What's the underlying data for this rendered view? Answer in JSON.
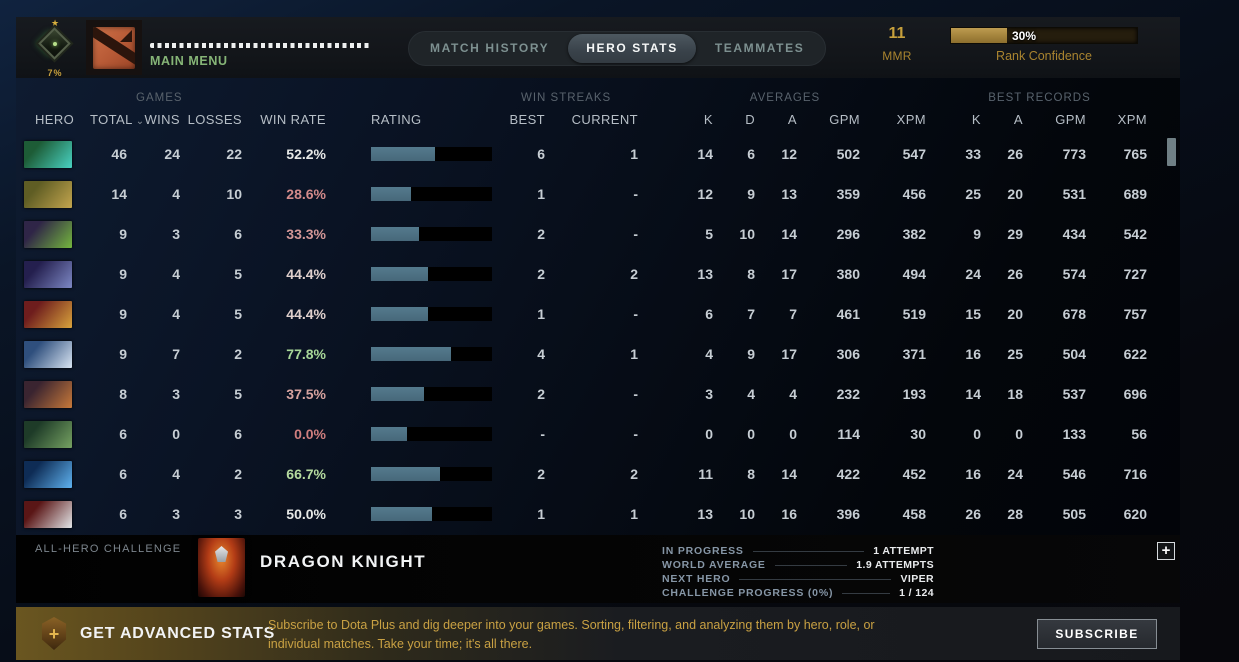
{
  "top_bar": {
    "rank_badge": {
      "percent": "7%"
    },
    "main_menu": {
      "label": "MAIN MENU",
      "masked_name_dots": 30
    },
    "tabs": [
      {
        "label": "MATCH HISTORY",
        "active": false
      },
      {
        "label": "HERO STATS",
        "active": true
      },
      {
        "label": "TEAMMATES",
        "active": false
      }
    ],
    "mmr": {
      "value": "11",
      "label": "MMR"
    },
    "rank_confidence": {
      "label": "Rank Confidence",
      "percent_text": "30%",
      "fill_percent": 30
    }
  },
  "table": {
    "group_headers": {
      "games": "GAMES",
      "win_streaks": "WIN STREAKS",
      "averages": "AVERAGES",
      "best_records": "BEST RECORDS"
    },
    "columns": {
      "hero": "HERO",
      "total": "TOTAL",
      "wins": "WINS",
      "losses": "LOSSES",
      "win_rate": "WIN RATE",
      "rating": "RATING",
      "best": "BEST",
      "current": "CURRENT",
      "k": "K",
      "d": "D",
      "a": "A",
      "gpm": "GPM",
      "xpm": "XPM",
      "rk": "K",
      "ra": "A",
      "rgpm": "GPM",
      "rxpm": "XPM"
    },
    "sort_chevron": "⌄",
    "bar_color": "#4e7487",
    "rows": [
      {
        "hero": "weaver",
        "icon": [
          "#1d5c36",
          "#49d2c2"
        ],
        "total": "46",
        "wins": "24",
        "losses": "22",
        "win_rate": "52.2%",
        "win_rate_color": "#e6e8e6",
        "rating_fill": 53,
        "streak_best": "6",
        "streak_current": "1",
        "avg_k": "14",
        "avg_d": "6",
        "avg_a": "12",
        "avg_gpm": "502",
        "avg_xpm": "547",
        "best_k": "33",
        "best_a": "26",
        "best_gpm": "773",
        "best_xpm": "765"
      },
      {
        "hero": "pudge",
        "icon": [
          "#5f5d24",
          "#c3a54e"
        ],
        "total": "14",
        "wins": "4",
        "losses": "10",
        "win_rate": "28.6%",
        "win_rate_color": "#d38b8b",
        "rating_fill": 33,
        "streak_best": "1",
        "streak_current": "-",
        "avg_k": "12",
        "avg_d": "9",
        "avg_a": "13",
        "avg_gpm": "359",
        "avg_xpm": "456",
        "best_k": "25",
        "best_a": "20",
        "best_gpm": "531",
        "best_xpm": "689"
      },
      {
        "hero": "rubick",
        "icon": [
          "#2f2547",
          "#74b63e"
        ],
        "total": "9",
        "wins": "3",
        "losses": "6",
        "win_rate": "33.3%",
        "win_rate_color": "#d39797",
        "rating_fill": 40,
        "streak_best": "2",
        "streak_current": "-",
        "avg_k": "5",
        "avg_d": "10",
        "avg_a": "14",
        "avg_gpm": "296",
        "avg_xpm": "382",
        "best_k": "9",
        "best_a": "29",
        "best_gpm": "434",
        "best_xpm": "542"
      },
      {
        "hero": "riki",
        "icon": [
          "#241f4e",
          "#7d88c4"
        ],
        "total": "9",
        "wins": "4",
        "losses": "5",
        "win_rate": "44.4%",
        "win_rate_color": "#e0d0cd",
        "rating_fill": 47,
        "streak_best": "2",
        "streak_current": "2",
        "avg_k": "13",
        "avg_d": "8",
        "avg_a": "17",
        "avg_gpm": "380",
        "avg_xpm": "494",
        "best_k": "24",
        "best_a": "26",
        "best_gpm": "574",
        "best_xpm": "727"
      },
      {
        "hero": "legion-commander",
        "icon": [
          "#6e1d1d",
          "#d9a33c"
        ],
        "total": "9",
        "wins": "4",
        "losses": "5",
        "win_rate": "44.4%",
        "win_rate_color": "#e0d0cd",
        "rating_fill": 47,
        "streak_best": "1",
        "streak_current": "-",
        "avg_k": "6",
        "avg_d": "7",
        "avg_a": "7",
        "avg_gpm": "461",
        "avg_xpm": "519",
        "best_k": "15",
        "best_a": "20",
        "best_gpm": "678",
        "best_xpm": "757"
      },
      {
        "hero": "crystal-maiden",
        "icon": [
          "#2f4f7d",
          "#d8e4f2"
        ],
        "total": "9",
        "wins": "7",
        "losses": "2",
        "win_rate": "77.8%",
        "win_rate_color": "#a8d798",
        "rating_fill": 66,
        "streak_best": "4",
        "streak_current": "1",
        "avg_k": "4",
        "avg_d": "9",
        "avg_a": "17",
        "avg_gpm": "306",
        "avg_xpm": "371",
        "best_k": "16",
        "best_a": "25",
        "best_gpm": "504",
        "best_xpm": "622"
      },
      {
        "hero": "timbersaw",
        "icon": [
          "#3a2430",
          "#c7793a"
        ],
        "total": "8",
        "wins": "3",
        "losses": "5",
        "win_rate": "37.5%",
        "win_rate_color": "#d7a39f",
        "rating_fill": 44,
        "streak_best": "2",
        "streak_current": "-",
        "avg_k": "3",
        "avg_d": "4",
        "avg_a": "4",
        "avg_gpm": "232",
        "avg_xpm": "193",
        "best_k": "14",
        "best_a": "18",
        "best_gpm": "537",
        "best_xpm": "696"
      },
      {
        "hero": "tidehunter",
        "icon": [
          "#1e3b28",
          "#76a262"
        ],
        "total": "6",
        "wins": "0",
        "losses": "6",
        "win_rate": "0.0%",
        "win_rate_color": "#cf7e7e",
        "rating_fill": 30,
        "streak_best": "-",
        "streak_current": "-",
        "avg_k": "0",
        "avg_d": "0",
        "avg_a": "0",
        "avg_gpm": "114",
        "avg_xpm": "30",
        "best_k": "0",
        "best_a": "0",
        "best_gpm": "133",
        "best_xpm": "56"
      },
      {
        "hero": "razor",
        "icon": [
          "#0e2c55",
          "#5fb2ef"
        ],
        "total": "6",
        "wins": "4",
        "losses": "2",
        "win_rate": "66.7%",
        "win_rate_color": "#b5db9f",
        "rating_fill": 57,
        "streak_best": "2",
        "streak_current": "2",
        "avg_k": "11",
        "avg_d": "8",
        "avg_a": "14",
        "avg_gpm": "422",
        "avg_xpm": "452",
        "best_k": "16",
        "best_a": "24",
        "best_gpm": "546",
        "best_xpm": "716"
      },
      {
        "hero": "tusk",
        "icon": [
          "#5a1616",
          "#e3e6e8"
        ],
        "total": "6",
        "wins": "3",
        "losses": "3",
        "win_rate": "50.0%",
        "win_rate_color": "#e6e8e6",
        "rating_fill": 50,
        "streak_best": "1",
        "streak_current": "1",
        "avg_k": "13",
        "avg_d": "10",
        "avg_a": "16",
        "avg_gpm": "396",
        "avg_xpm": "458",
        "best_k": "26",
        "best_a": "28",
        "best_gpm": "505",
        "best_xpm": "620"
      }
    ]
  },
  "challenge": {
    "section_label": "ALL-HERO CHALLENGE",
    "hero_name": "DRAGON KNIGHT",
    "stats": [
      {
        "label": "IN PROGRESS",
        "value": "1 ATTEMPT"
      },
      {
        "label": "WORLD AVERAGE",
        "value": "1.9 ATTEMPTS"
      },
      {
        "label": "NEXT HERO",
        "value": "VIPER"
      },
      {
        "label": "CHALLENGE PROGRESS (0%)",
        "value": "1 / 124"
      }
    ],
    "expand_button": "+"
  },
  "subscribe_bar": {
    "title": "GET ADVANCED STATS",
    "description": "Subscribe to Dota Plus and dig deeper into your games. Sorting, filtering, and analyzing them by hero, role, or individual matches. Take your time; it's all there.",
    "button_label": "SUBSCRIBE",
    "plus_glyph": "+"
  }
}
